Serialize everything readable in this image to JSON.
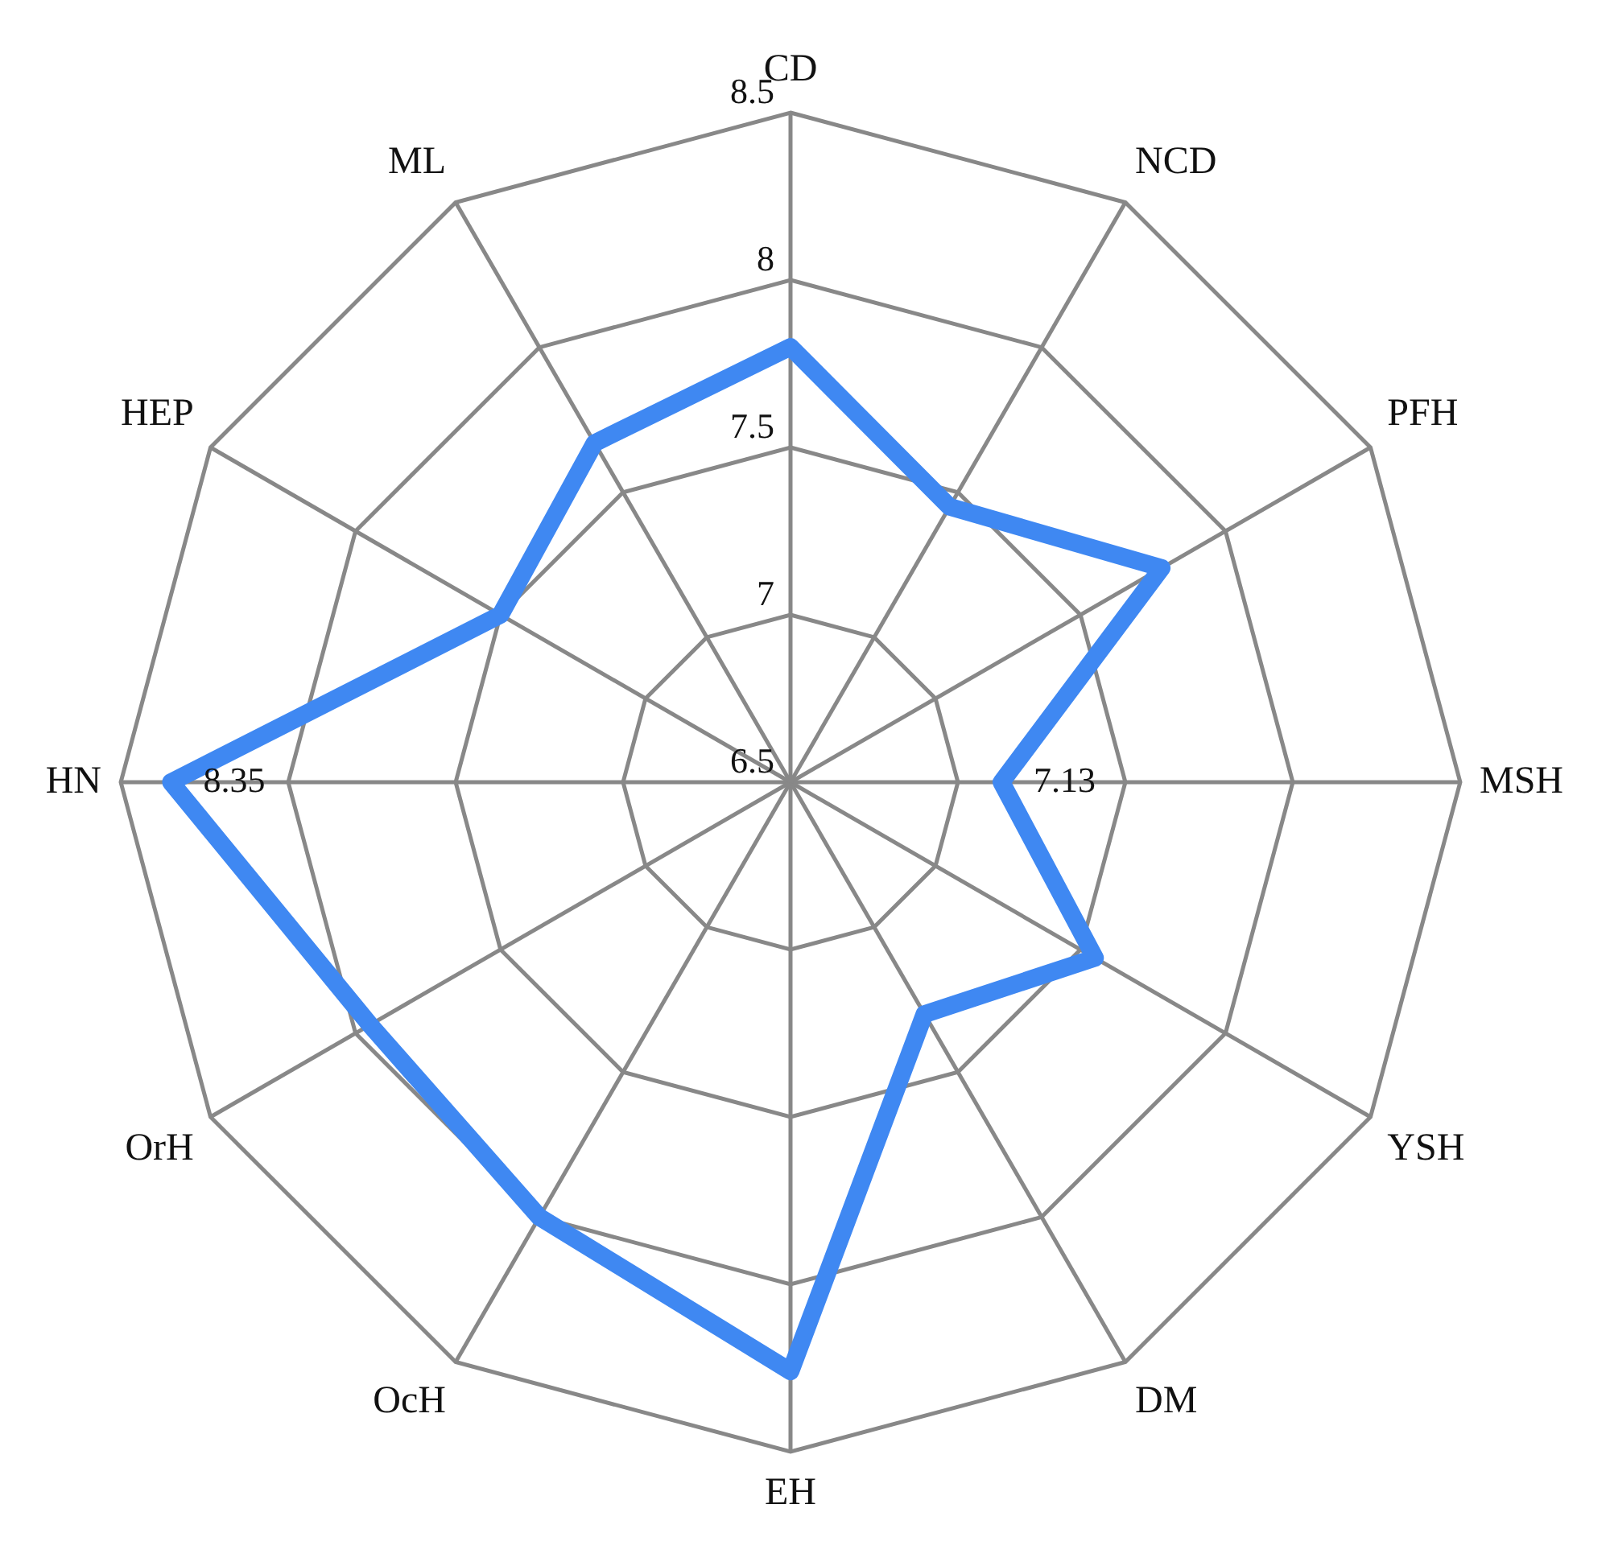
{
  "chart_data": {
    "type": "radar",
    "categories": [
      "CD",
      "NCD",
      "PFH",
      "MSH",
      "YSH",
      "DM",
      "EH",
      "OcH",
      "OrH",
      "HN",
      "HEP",
      "ML"
    ],
    "series": [
      {
        "color": "#3f88f2",
        "values": [
          7.8,
          7.45,
          7.78,
          7.13,
          7.55,
          7.3,
          8.26,
          8.0,
          7.95,
          8.35,
          7.5,
          7.67
        ],
        "value_labels": [
          null,
          null,
          null,
          "7.13",
          null,
          null,
          null,
          null,
          null,
          "8.35",
          null,
          null
        ]
      }
    ],
    "ylim": [
      6.5,
      8.5
    ],
    "yticks": [
      6.5,
      7,
      7.5,
      8,
      8.5
    ],
    "grid": true,
    "legend": false,
    "marker": "none"
  }
}
